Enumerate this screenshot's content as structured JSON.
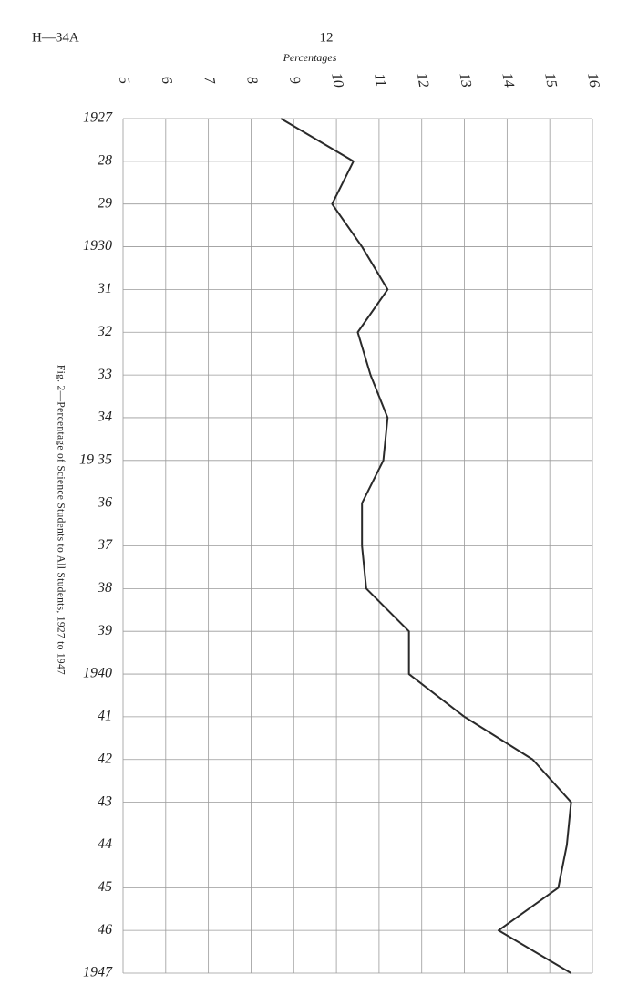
{
  "page_header": {
    "reference": "H—34A",
    "page_number": "12"
  },
  "chart_data": {
    "type": "line",
    "x_label": "Percentages",
    "caption": "Fig. 2—Percentage of Science Students to All Students, 1927 to 1947",
    "categories": [
      "1927",
      "28",
      "29",
      "1930",
      "31",
      "32",
      "33",
      "34",
      "19 35",
      "36",
      "37",
      "38",
      "39",
      "1940",
      "41",
      "42",
      "43",
      "44",
      "45",
      "46",
      "1947"
    ],
    "values": [
      8.7,
      10.4,
      9.9,
      10.6,
      11.2,
      10.5,
      10.8,
      11.2,
      11.1,
      10.6,
      10.6,
      10.7,
      11.7,
      11.7,
      13.0,
      14.6,
      15.5,
      15.4,
      15.2,
      13.8,
      15.5
    ],
    "color": "#2a2a2a",
    "xlim": [
      5,
      16
    ],
    "xticks": [
      5,
      6,
      7,
      8,
      9,
      10,
      11,
      12,
      13,
      14,
      15,
      16
    ],
    "grid": true
  }
}
